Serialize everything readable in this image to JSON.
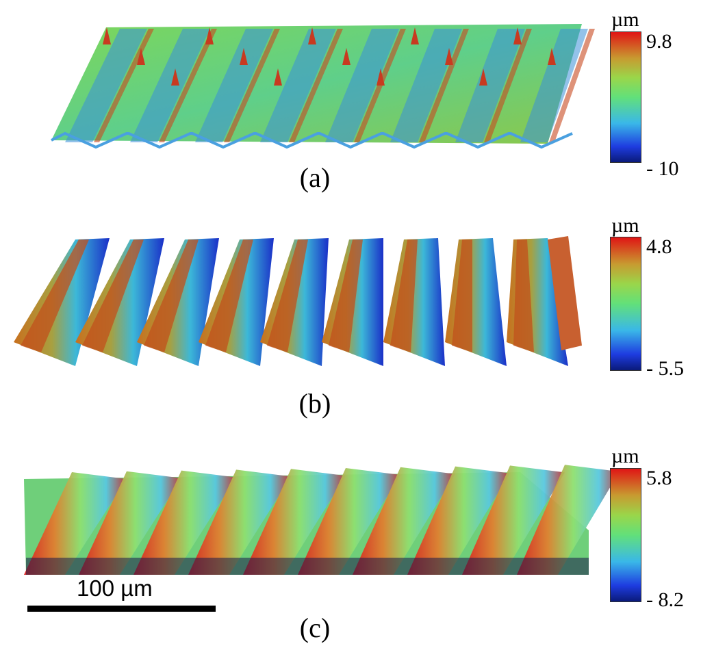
{
  "panels": [
    {
      "label": "(a)",
      "unit": "µm",
      "max": "9.8",
      "min": "- 10"
    },
    {
      "label": "(b)",
      "unit": "µm",
      "max": "4.8",
      "min": "- 5.5"
    },
    {
      "label": "(c)",
      "unit": "µm",
      "max": "5.8",
      "min": "- 8.2"
    }
  ],
  "scale_bar": {
    "label": "100 µm"
  },
  "colormap": [
    "#0a1a8c",
    "#1e4fe0",
    "#3bb8e0",
    "#6fe08a",
    "#9bd64a",
    "#c8b030",
    "#d86a20",
    "#e01818"
  ]
}
